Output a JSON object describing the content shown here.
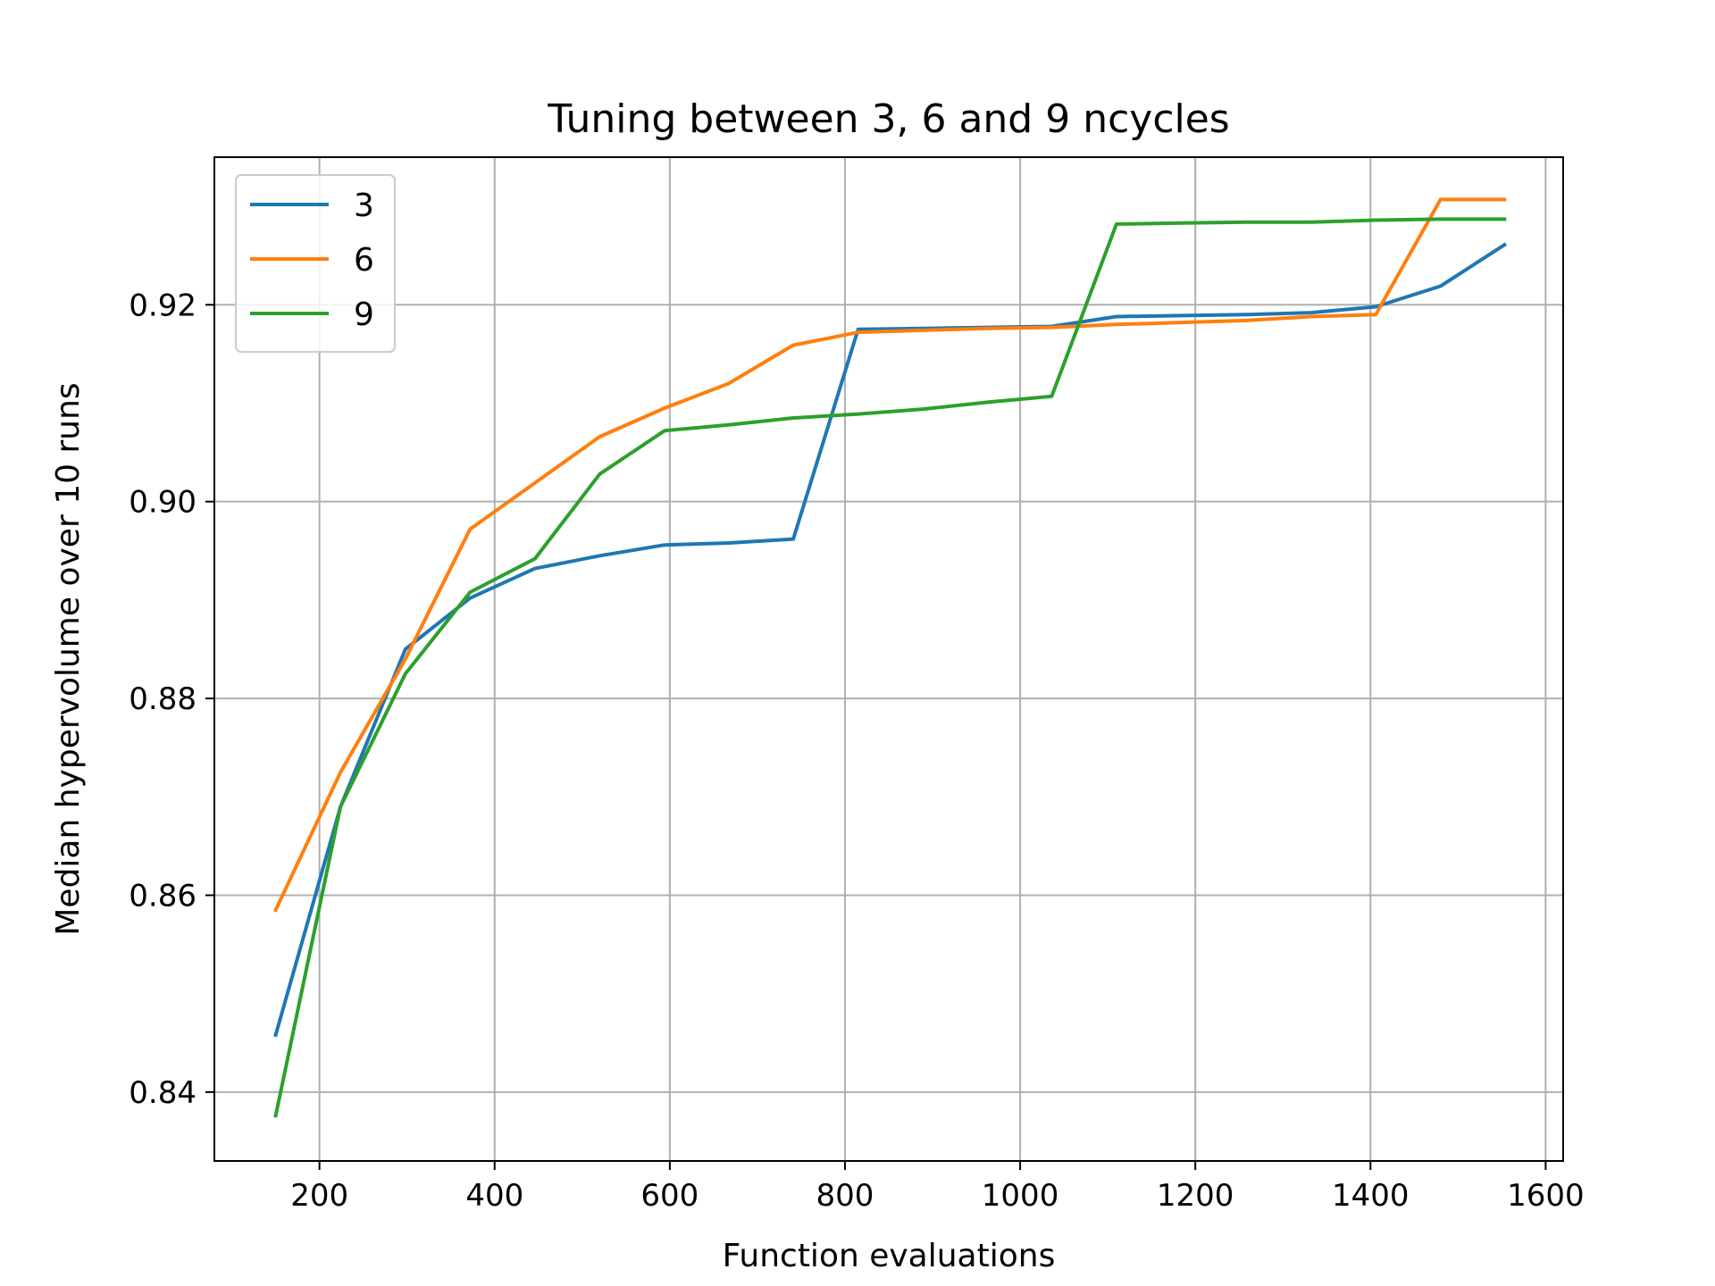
{
  "chart_data": {
    "type": "line",
    "title": "Tuning between 3, 6 and 9 ncycles",
    "xlabel": "Function evaluations",
    "ylabel": "Median hypervolume over 10 runs",
    "xlim": [
      80,
      1620
    ],
    "ylim": [
      0.833,
      0.935
    ],
    "xticks": [
      200,
      400,
      600,
      800,
      1000,
      1200,
      1400,
      1600
    ],
    "yticks": [
      0.84,
      0.86,
      0.88,
      0.9,
      0.92
    ],
    "xtick_labels": [
      "200",
      "400",
      "600",
      "800",
      "1000",
      "1200",
      "1400",
      "1600"
    ],
    "ytick_labels": [
      "0.84",
      "0.86",
      "0.88",
      "0.90",
      "0.92"
    ],
    "grid": true,
    "legend_position": "top-left",
    "x": [
      150,
      224,
      298,
      372,
      446,
      520,
      594,
      667,
      741,
      815,
      889,
      963,
      1036,
      1110,
      1184,
      1258,
      1332,
      1406,
      1480,
      1553
    ],
    "series": [
      {
        "name": "3",
        "color": "#1f77b4",
        "values": [
          0.8458,
          0.869,
          0.885,
          0.8902,
          0.8932,
          0.8945,
          0.8956,
          0.8958,
          0.8962,
          0.9175,
          0.9176,
          0.9177,
          0.9178,
          0.9188,
          0.9189,
          0.919,
          0.9192,
          0.9198,
          0.9219,
          0.9261
        ]
      },
      {
        "name": "6",
        "color": "#ff7f0e",
        "values": [
          0.8585,
          0.8725,
          0.884,
          0.8972,
          0.9019,
          0.9066,
          0.9095,
          0.912,
          0.9159,
          0.9172,
          0.9174,
          0.9176,
          0.9177,
          0.918,
          0.9182,
          0.9184,
          0.9188,
          0.919,
          0.9307,
          0.9307
        ]
      },
      {
        "name": "9",
        "color": "#2ca02c",
        "values": [
          0.8376,
          0.869,
          0.8825,
          0.8908,
          0.8942,
          0.9028,
          0.9072,
          0.9078,
          0.9085,
          0.9089,
          0.9094,
          0.9101,
          0.9107,
          0.9282,
          0.9283,
          0.9284,
          0.9284,
          0.9286,
          0.9287,
          0.9287
        ]
      }
    ]
  }
}
